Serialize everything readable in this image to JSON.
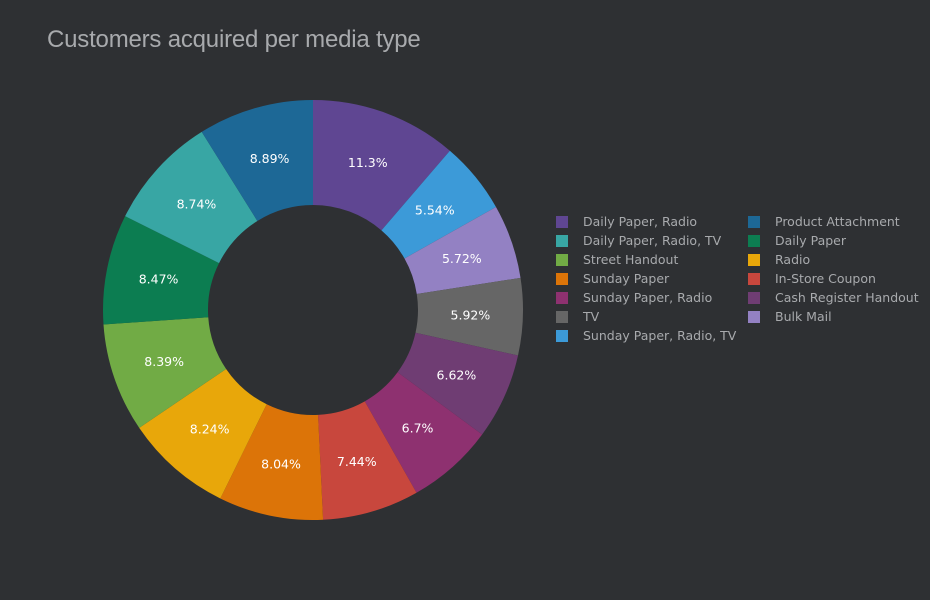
{
  "chart_data": {
    "type": "pie",
    "title": "Customers acquired per media type",
    "hole": true,
    "legend_position": "right",
    "slices": [
      {
        "label": "Daily Paper, Radio",
        "value": 11.3,
        "text": "11.3%",
        "color": "#5f4692"
      },
      {
        "label": "Sunday Paper, Radio, TV",
        "value": 5.54,
        "text": "5.54%",
        "color": "#3c9ad8"
      },
      {
        "label": "Bulk Mail",
        "value": 5.72,
        "text": "5.72%",
        "color": "#9381c3"
      },
      {
        "label": "TV",
        "value": 5.92,
        "text": "5.92%",
        "color": "#666666"
      },
      {
        "label": "Cash Register Handout",
        "value": 6.62,
        "text": "6.62%",
        "color": "#6f3d73"
      },
      {
        "label": "Sunday Paper, Radio",
        "value": 6.7,
        "text": "6.7%",
        "color": "#8e3170"
      },
      {
        "label": "In-Store Coupon",
        "value": 7.44,
        "text": "7.44%",
        "color": "#c8473d"
      },
      {
        "label": "Sunday Paper",
        "value": 8.04,
        "text": "8.04%",
        "color": "#dc7408"
      },
      {
        "label": "Radio",
        "value": 8.24,
        "text": "8.24%",
        "color": "#e8a70a"
      },
      {
        "label": "Street Handout",
        "value": 8.39,
        "text": "8.39%",
        "color": "#71ab45"
      },
      {
        "label": "Daily Paper",
        "value": 8.47,
        "text": "8.47%",
        "color": "#0c7d51"
      },
      {
        "label": "Daily Paper, Radio, TV",
        "value": 8.74,
        "text": "8.74%",
        "color": "#38a6a4"
      },
      {
        "label": "Product Attachment",
        "value": 8.89,
        "text": "8.89%",
        "color": "#1d6896"
      }
    ],
    "legend": [
      [
        "Daily Paper, Radio",
        "Daily Paper, Radio, TV",
        "Street Handout",
        "Sunday Paper",
        "Sunday Paper, Radio",
        "TV",
        "Sunday Paper, Radio, TV"
      ],
      [
        "Product Attachment",
        "Daily Paper",
        "Radio",
        "In-Store Coupon",
        "Cash Register Handout",
        "Bulk Mail"
      ]
    ]
  }
}
